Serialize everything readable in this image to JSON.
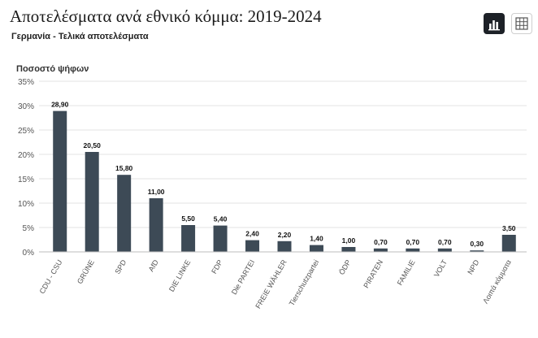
{
  "header": {
    "title": "Αποτελέσματα ανά εθνικό κόμμα: 2019-2024",
    "subtitle": "Γερμανία - Τελικά αποτελέσματα"
  },
  "toolbar": {
    "chart_view_icon": "bar-chart-icon",
    "table_view_icon": "table-grid-icon"
  },
  "colors": {
    "bar": "#3d4a56",
    "grid": "#e3e3e3",
    "axis_text": "#555555",
    "value_label": "#111111"
  },
  "chart_data": {
    "type": "bar",
    "ylabel": "Ποσοστό ψήφων",
    "xlabel": "",
    "ylim": [
      0,
      35
    ],
    "y_ticks": [
      0,
      5,
      10,
      15,
      20,
      25,
      30,
      35
    ],
    "y_tick_labels": [
      "0%",
      "5%",
      "10%",
      "15%",
      "20%",
      "25%",
      "30%",
      "35%"
    ],
    "grid": true,
    "categories": [
      "CDU - CSU",
      "GRÜNE",
      "SPD",
      "AfD",
      "DIE LINKE",
      "FDP",
      "Die PARTEI",
      "FREIE WÄHLER",
      "Tierschutzpartei",
      "ÖDP",
      "PIRATEN",
      "FAMILIE",
      "VOLT",
      "NPD",
      "Λοιπά κόμματα"
    ],
    "values": [
      28.9,
      20.5,
      15.8,
      11.0,
      5.5,
      5.4,
      2.4,
      2.2,
      1.4,
      1.0,
      0.7,
      0.7,
      0.7,
      0.3,
      3.5
    ],
    "value_labels": [
      "28,90",
      "20,50",
      "15,80",
      "11,00",
      "5,50",
      "5,40",
      "2,40",
      "2,20",
      "1,40",
      "1,00",
      "0,70",
      "0,70",
      "0,70",
      "0,30",
      "3,50"
    ]
  }
}
